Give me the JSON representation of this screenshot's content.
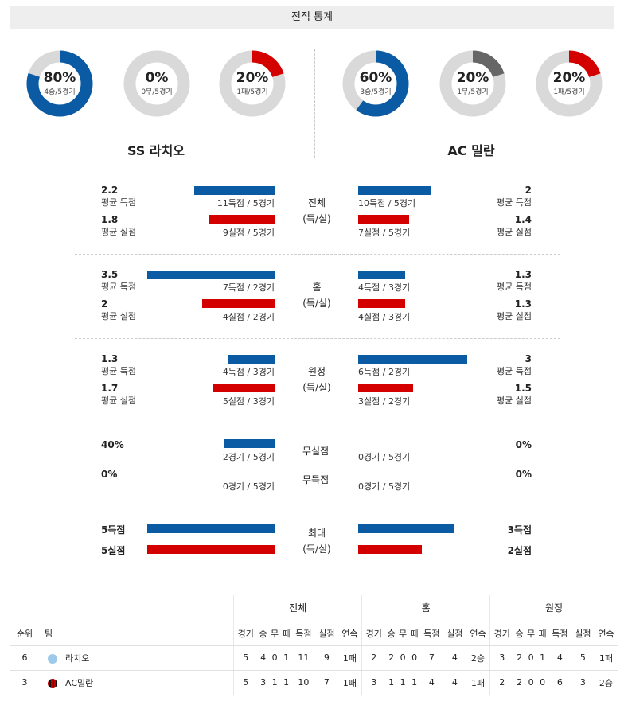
{
  "header": "전적 통계",
  "teams": {
    "left": "SS 라치오",
    "right": "AC 밀란"
  },
  "donuts": [
    {
      "pct_label": "80%",
      "sub": "4승/5경기",
      "value": 0.8,
      "color": "#0a5aa4"
    },
    {
      "pct_label": "0%",
      "sub": "0무/5경기",
      "value": 0.0,
      "color": "#666666"
    },
    {
      "pct_label": "20%",
      "sub": "1패/5경기",
      "value": 0.2,
      "color": "#d40000"
    },
    {
      "pct_label": "60%",
      "sub": "3승/5경기",
      "value": 0.6,
      "color": "#0a5aa4"
    },
    {
      "pct_label": "20%",
      "sub": "1무/5경기",
      "value": 0.2,
      "color": "#666666"
    },
    {
      "pct_label": "20%",
      "sub": "1패/5경기",
      "value": 0.2,
      "color": "#d40000"
    }
  ],
  "sections": [
    {
      "title1": "전체",
      "title2": "(득/실)",
      "left": {
        "score_val": "2.2",
        "score_lbl": "평균 득점",
        "score_cap": "11득점 / 5경기",
        "score_bar": 2.2,
        "concede_val": "1.8",
        "concede_lbl": "평균 실점",
        "concede_cap": "9실점 / 5경기",
        "concede_bar": 1.8
      },
      "right": {
        "score_val": "2",
        "score_lbl": "평균 득점",
        "score_cap": "10득점 / 5경기",
        "score_bar": 2.0,
        "concede_val": "1.4",
        "concede_lbl": "평균 실점",
        "concede_cap": "7실점 / 5경기",
        "concede_bar": 1.4
      }
    },
    {
      "title1": "홈",
      "title2": "(득/실)",
      "left": {
        "score_val": "3.5",
        "score_lbl": "평균 득점",
        "score_cap": "7득점 / 2경기",
        "score_bar": 3.5,
        "concede_val": "2",
        "concede_lbl": "평균 실점",
        "concede_cap": "4실점 / 2경기",
        "concede_bar": 2.0
      },
      "right": {
        "score_val": "1.3",
        "score_lbl": "평균 득점",
        "score_cap": "4득점 / 3경기",
        "score_bar": 1.3,
        "concede_val": "1.3",
        "concede_lbl": "평균 실점",
        "concede_cap": "4실점 / 3경기",
        "concede_bar": 1.3
      }
    },
    {
      "title1": "원정",
      "title2": "(득/실)",
      "left": {
        "score_val": "1.3",
        "score_lbl": "평균 득점",
        "score_cap": "4득점 / 3경기",
        "score_bar": 1.3,
        "concede_val": "1.7",
        "concede_lbl": "평균 실점",
        "concede_cap": "5실점 / 3경기",
        "concede_bar": 1.7
      },
      "right": {
        "score_val": "3",
        "score_lbl": "평균 득점",
        "score_cap": "6득점 / 2경기",
        "score_bar": 3.0,
        "concede_val": "1.5",
        "concede_lbl": "평균 실점",
        "concede_cap": "3실점 / 2경기",
        "concede_bar": 1.5
      }
    }
  ],
  "clean": {
    "clean_title": "무실점",
    "nogoal_title": "무득점",
    "left_clean_val": "40%",
    "left_clean_cap": "2경기 / 5경기",
    "left_clean_frac": 0.4,
    "left_nogoal_val": "0%",
    "left_nogoal_cap": "0경기 / 5경기",
    "right_clean_val": "0%",
    "right_clean_cap": "0경기 / 5경기",
    "right_nogoal_val": "0%",
    "right_nogoal_cap": "0경기 / 5경기"
  },
  "max": {
    "title1": "최대",
    "title2": "(득/실)",
    "left_score": "5득점",
    "left_concede": "5실점",
    "left_score_n": 5,
    "left_concede_n": 5,
    "right_score": "3득점",
    "right_concede": "2실점",
    "right_score_n": 3,
    "right_concede_n": 2
  },
  "standings": {
    "groups": [
      "전체",
      "홈",
      "원정"
    ],
    "rank_h": "순위",
    "team_h": "팀",
    "cols": [
      "경기",
      "승",
      "무",
      "패",
      "득점",
      "실점",
      "연속"
    ],
    "rows": [
      {
        "rank": "6",
        "team": "라치오",
        "logo": "lazio-eagle-logo",
        "all": [
          "5",
          "4",
          "0",
          "1",
          "11",
          "9",
          "1패"
        ],
        "home": [
          "2",
          "2",
          "0",
          "0",
          "7",
          "4",
          "2승"
        ],
        "away": [
          "3",
          "2",
          "0",
          "1",
          "4",
          "5",
          "1패"
        ]
      },
      {
        "rank": "3",
        "team": "AC밀란",
        "logo": "milan-crest-logo",
        "all": [
          "5",
          "3",
          "1",
          "1",
          "10",
          "7",
          "1패"
        ],
        "home": [
          "3",
          "1",
          "1",
          "1",
          "4",
          "4",
          "1패"
        ],
        "away": [
          "2",
          "2",
          "0",
          "0",
          "6",
          "3",
          "2승"
        ]
      }
    ]
  }
}
